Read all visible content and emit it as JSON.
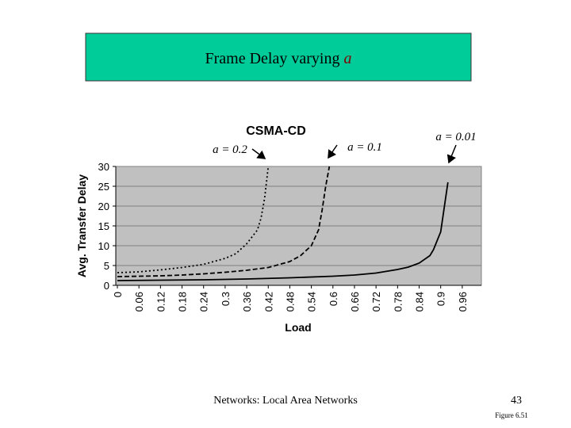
{
  "slide": {
    "title": "Frame Delay varying",
    "title_emphasis": "a",
    "footer": "Networks: Local Area Networks",
    "page_number": "43",
    "figure": "Figure 6.51"
  },
  "chart_data": {
    "type": "line",
    "title": "CSMA-CD",
    "x_label": "Load",
    "y_label": "Avg. Transfer Delay",
    "xlim": [
      0,
      1.0
    ],
    "xticks": [
      0,
      0.06,
      0.12,
      0.18,
      0.24,
      0.3,
      0.36,
      0.42,
      0.48,
      0.54,
      0.6,
      0.66,
      0.72,
      0.78,
      0.84,
      0.9,
      0.96
    ],
    "ylim": [
      0,
      30
    ],
    "yticks": [
      0,
      5,
      10,
      15,
      20,
      25,
      30
    ],
    "grid": true,
    "series": [
      {
        "name": "a = 0.2",
        "color": "#000000",
        "style": "dotted",
        "x": [
          0,
          0.06,
          0.12,
          0.18,
          0.24,
          0.3,
          0.33,
          0.36,
          0.39,
          0.4,
          0.41,
          0.42
        ],
        "values": [
          3.2,
          3.4,
          3.9,
          4.5,
          5.3,
          6.8,
          8,
          10.5,
          14,
          17,
          22,
          30
        ]
      },
      {
        "name": "a = 0.1",
        "color": "#000000",
        "style": "dashed",
        "x": [
          0,
          0.06,
          0.12,
          0.18,
          0.24,
          0.3,
          0.36,
          0.42,
          0.48,
          0.51,
          0.54,
          0.56,
          0.57,
          0.58,
          0.59
        ],
        "values": [
          2.2,
          2.3,
          2.4,
          2.6,
          2.9,
          3.3,
          3.8,
          4.5,
          6,
          7.5,
          10,
          14,
          19,
          25,
          30
        ]
      },
      {
        "name": "a = 0.01",
        "color": "#000000",
        "style": "solid",
        "x": [
          0,
          0.12,
          0.24,
          0.36,
          0.48,
          0.6,
          0.66,
          0.72,
          0.78,
          0.81,
          0.84,
          0.87,
          0.88,
          0.9,
          0.92
        ],
        "values": [
          1.2,
          1.3,
          1.4,
          1.6,
          1.9,
          2.3,
          2.6,
          3.1,
          4,
          4.6,
          5.6,
          7.5,
          9,
          13.5,
          26
        ]
      }
    ]
  }
}
